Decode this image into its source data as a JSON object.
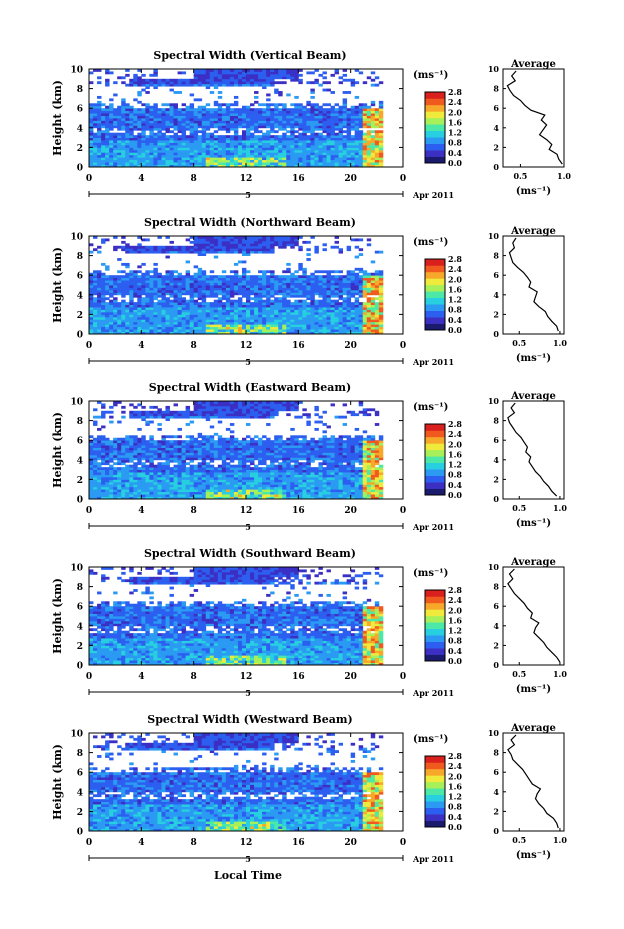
{
  "figure": {
    "xlabel": "Local Time",
    "date_label": "Apr 2011",
    "day_label": "5",
    "avg_title": "Average",
    "avg_xlabel": "(ms⁻¹)",
    "ylabel": "Height (km)",
    "cbar_unit": "(ms⁻¹)"
  },
  "colorbar": {
    "ticks": [
      "2.8",
      "2.4",
      "2.0",
      "1.6",
      "1.2",
      "0.8",
      "0.4",
      "0.0"
    ],
    "colors": [
      "#1a1a6e",
      "#3b2fc4",
      "#2c5ff0",
      "#2a9af2",
      "#27cfe0",
      "#4ce8a8",
      "#a8f05a",
      "#f0ea3c",
      "#f7a82a",
      "#f05a1e",
      "#d9201e"
    ]
  },
  "chart_data": [
    {
      "type": "heatmap",
      "title": "Spectral Width (Vertical Beam)",
      "xlabel": "Local Time",
      "ylabel": "Height (km)",
      "x_ticks": [
        "0",
        "4",
        "8",
        "12",
        "16",
        "20",
        "0"
      ],
      "xlim": [
        0,
        24
      ],
      "y_ticks": [
        "0",
        "2",
        "4",
        "6",
        "8",
        "10"
      ],
      "ylim": [
        0,
        10
      ],
      "value_range": [
        0.0,
        2.8
      ],
      "unit": "ms-1",
      "average": {
        "x_ticks": [
          "0.5",
          "1.0"
        ],
        "xlim": [
          0.3,
          1.0
        ],
        "height": [
          0.3,
          0.8,
          1.3,
          1.8,
          2.3,
          2.8,
          3.3,
          3.8,
          4.3,
          4.8,
          5.3,
          5.8,
          6.3,
          6.8,
          7.3,
          7.8,
          8.3,
          8.8,
          9.3,
          9.8
        ],
        "width": [
          0.98,
          0.94,
          0.92,
          0.83,
          0.86,
          0.8,
          0.72,
          0.76,
          0.8,
          0.74,
          0.78,
          0.62,
          0.55,
          0.5,
          0.42,
          0.38,
          0.35,
          0.44,
          0.4,
          0.45
        ]
      }
    },
    {
      "type": "heatmap",
      "title": "Spectral Width (Northward Beam)",
      "xlabel": "Local Time",
      "ylabel": "Height (km)",
      "x_ticks": [
        "0",
        "4",
        "8",
        "12",
        "16",
        "20",
        "0"
      ],
      "xlim": [
        0,
        24
      ],
      "y_ticks": [
        "0",
        "2",
        "4",
        "6",
        "8",
        "10"
      ],
      "ylim": [
        0,
        10
      ],
      "value_range": [
        0.0,
        2.8
      ],
      "unit": "ms-1",
      "average": {
        "x_ticks": [
          "0.5",
          "1.0"
        ],
        "xlim": [
          0.3,
          1.05
        ],
        "height": [
          0.3,
          0.8,
          1.3,
          1.8,
          2.3,
          2.8,
          3.3,
          3.8,
          4.3,
          4.8,
          5.3,
          5.8,
          6.3,
          6.8,
          7.3,
          7.8,
          8.3,
          8.8,
          9.3,
          9.8
        ],
        "width": [
          0.98,
          0.96,
          0.9,
          0.85,
          0.82,
          0.74,
          0.68,
          0.7,
          0.72,
          0.62,
          0.64,
          0.6,
          0.55,
          0.48,
          0.42,
          0.4,
          0.38,
          0.44,
          0.42,
          0.46
        ]
      }
    },
    {
      "type": "heatmap",
      "title": "Spectral Width (Eastward Beam)",
      "xlabel": "Local Time",
      "ylabel": "Height (km)",
      "x_ticks": [
        "0",
        "4",
        "8",
        "12",
        "16",
        "20",
        "0"
      ],
      "xlim": [
        0,
        24
      ],
      "y_ticks": [
        "0",
        "2",
        "4",
        "6",
        "8",
        "10"
      ],
      "ylim": [
        0,
        10
      ],
      "value_range": [
        0.0,
        2.8
      ],
      "unit": "ms-1",
      "average": {
        "x_ticks": [
          "0.5",
          "1.0"
        ],
        "xlim": [
          0.3,
          1.05
        ],
        "height": [
          0.3,
          0.8,
          1.3,
          1.8,
          2.3,
          2.8,
          3.3,
          3.8,
          4.3,
          4.8,
          5.3,
          5.8,
          6.3,
          6.8,
          7.3,
          7.8,
          8.3,
          8.8,
          9.3,
          9.8
        ],
        "width": [
          0.96,
          0.9,
          0.86,
          0.8,
          0.76,
          0.7,
          0.66,
          0.62,
          0.64,
          0.58,
          0.6,
          0.56,
          0.52,
          0.46,
          0.42,
          0.38,
          0.36,
          0.44,
          0.4,
          0.45
        ]
      }
    },
    {
      "type": "heatmap",
      "title": "Spectral Width (Southward Beam)",
      "xlabel": "Local Time",
      "ylabel": "Height (km)",
      "x_ticks": [
        "0",
        "4",
        "8",
        "12",
        "16",
        "20",
        "0"
      ],
      "xlim": [
        0,
        24
      ],
      "y_ticks": [
        "0",
        "2",
        "4",
        "6",
        "8",
        "10"
      ],
      "ylim": [
        0,
        10
      ],
      "value_range": [
        0.0,
        2.8
      ],
      "unit": "ms-1",
      "average": {
        "x_ticks": [
          "0.5",
          "1.0"
        ],
        "xlim": [
          0.3,
          1.05
        ],
        "height": [
          0.3,
          0.8,
          1.3,
          1.8,
          2.3,
          2.8,
          3.3,
          3.8,
          4.3,
          4.8,
          5.3,
          5.8,
          6.3,
          6.8,
          7.3,
          7.8,
          8.3,
          8.8,
          9.3,
          9.8
        ],
        "width": [
          1.0,
          0.96,
          0.9,
          0.84,
          0.8,
          0.74,
          0.68,
          0.7,
          0.74,
          0.64,
          0.66,
          0.6,
          0.56,
          0.5,
          0.44,
          0.4,
          0.36,
          0.42,
          0.38,
          0.44
        ]
      }
    },
    {
      "type": "heatmap",
      "title": "Spectral Width (Westward Beam)",
      "xlabel": "Local Time",
      "ylabel": "Height (km)",
      "x_ticks": [
        "0",
        "4",
        "8",
        "12",
        "16",
        "20",
        "0"
      ],
      "xlim": [
        0,
        24
      ],
      "y_ticks": [
        "0",
        "2",
        "4",
        "6",
        "8",
        "10"
      ],
      "ylim": [
        0,
        10
      ],
      "value_range": [
        0.0,
        2.8
      ],
      "unit": "ms-1",
      "average": {
        "x_ticks": [
          "0.5",
          "1.0"
        ],
        "xlim": [
          0.3,
          1.05
        ],
        "height": [
          0.3,
          0.8,
          1.3,
          1.8,
          2.3,
          2.8,
          3.3,
          3.8,
          4.3,
          4.8,
          5.3,
          5.8,
          6.3,
          6.8,
          7.3,
          7.8,
          8.3,
          8.8,
          9.3,
          9.8
        ],
        "width": [
          0.98,
          0.96,
          0.92,
          0.84,
          0.8,
          0.74,
          0.7,
          0.72,
          0.76,
          0.66,
          0.62,
          0.58,
          0.54,
          0.48,
          0.42,
          0.4,
          0.36,
          0.44,
          0.4,
          0.46
        ]
      }
    }
  ]
}
